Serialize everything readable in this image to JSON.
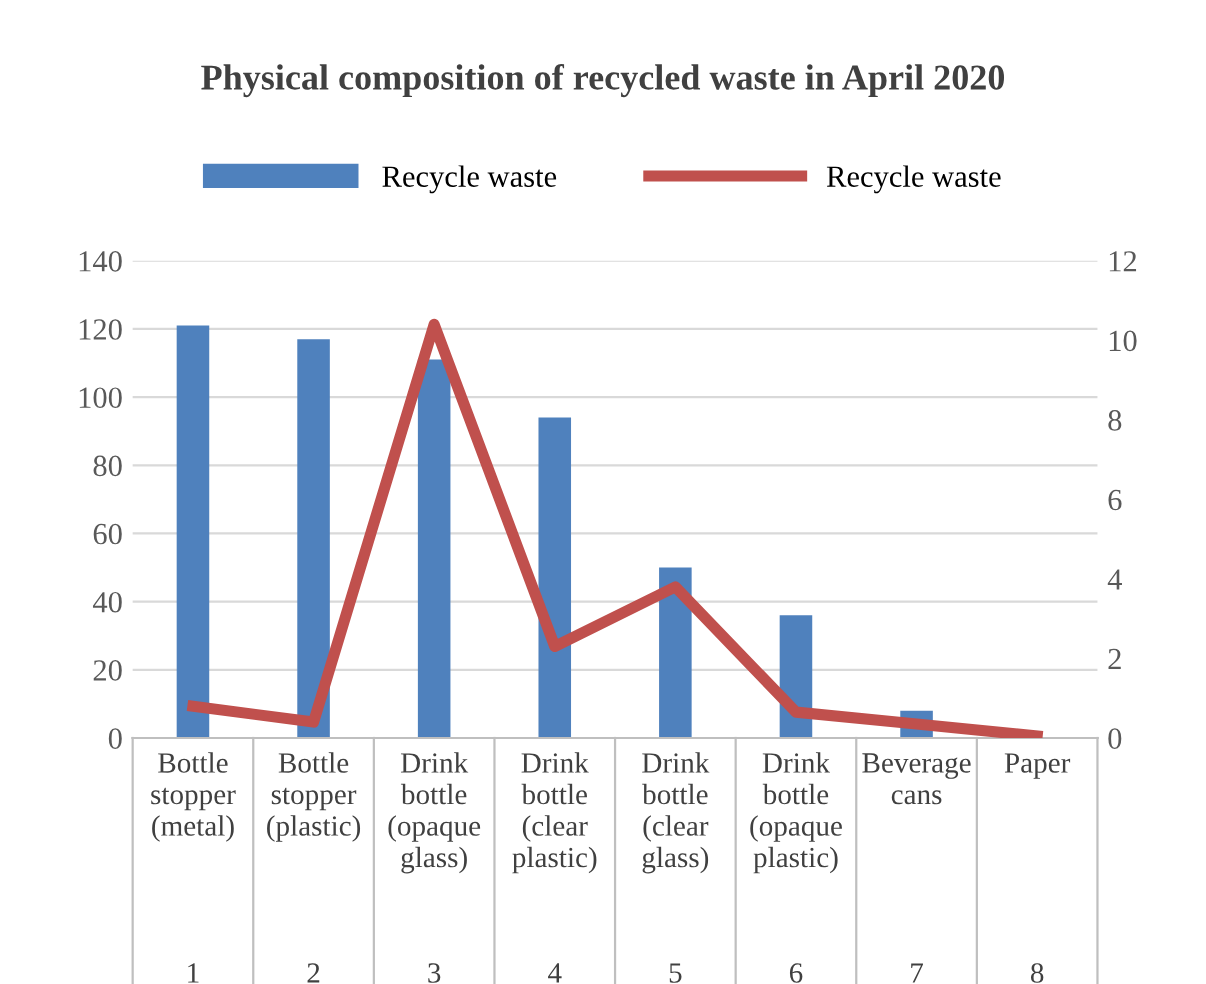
{
  "chart_data": {
    "type": "bar",
    "title": "Physical composition of recycled waste in April 2020",
    "categories": [
      "Bottle\nstopper\n(metal)\n\n1",
      "Bottle\nstopper\n(plastic)\n\n2",
      "Drink\nbottle\n(opaque\nglass)\n\n3",
      "Drink\nbottle\n(clear\nplastic)\n\n4",
      "Drink\nbottle\n(clear\nglass)\n\n5",
      "Drink\nbottle\n(opaque\nplastic)\n\n6",
      "Beverage\ncans\n\n7",
      "Paper\n\n8"
    ],
    "series": [
      {
        "name": "Recycle waste",
        "color": "#4f81bd",
        "values": [
          121,
          117,
          111,
          94,
          50,
          36,
          8,
          null
        ]
      },
      {
        "name": "Recycle waste",
        "type": "line",
        "axis": "y2",
        "color": "#c0504d",
        "values": [
          0.8,
          0.4,
          10.4,
          2.3,
          3.8,
          0.65,
          0.35,
          0.05
        ]
      }
    ],
    "ylim": [
      0,
      140
    ],
    "yticks": [
      0,
      20,
      40,
      60,
      80,
      100,
      120,
      140
    ],
    "y2lim": [
      0,
      12
    ],
    "y2ticks": [
      0,
      2,
      4,
      6,
      8,
      10,
      12
    ],
    "grid": "y",
    "legend": "top",
    "marker": "none",
    "line_style": "solid"
  }
}
